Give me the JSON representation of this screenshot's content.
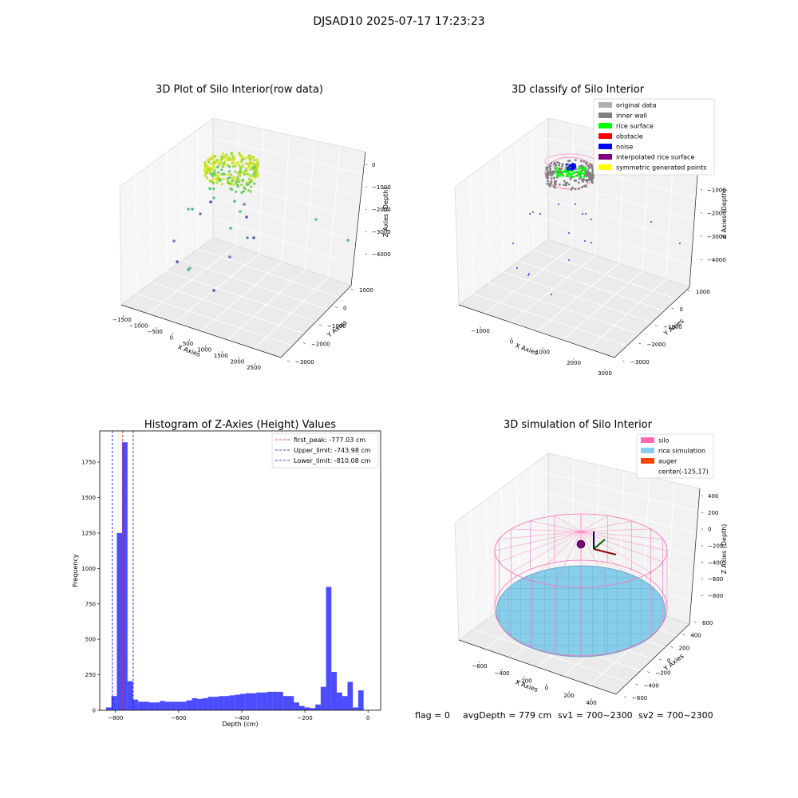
{
  "figure": {
    "suptitle": "DJSAD10 2025-07-17 17:23:23",
    "footer": {
      "flag": "flag = 0",
      "avg_depth": "avgDepth = 779 cm",
      "sv1": "sv1 = 700~2300",
      "sv2": "sv2 = 700~2300"
    }
  },
  "panels": {
    "raw": {
      "title": "3D Plot of Silo Interior(row data)",
      "xlabel": "X Axies",
      "ylabel": "Y Axies",
      "zlabel": "Z Axies (Depth)",
      "xticks": [
        "−1500",
        "−1000",
        "−500",
        "0",
        "500",
        "1000",
        "1500",
        "2000",
        "2500"
      ],
      "yticks": [
        "1000",
        "0",
        "−1000",
        "−2000",
        "−3000"
      ],
      "zticks": [
        "0",
        "−1000",
        "−2000",
        "−3000",
        "−4000"
      ]
    },
    "classify": {
      "title": "3D classify of Silo Interior",
      "xlabel": "X Axies",
      "ylabel": "Y Axies",
      "zlabel": "Z Axies (Depth)",
      "xticks": [
        "−1000",
        "0",
        "1000",
        "2000",
        "3000"
      ],
      "yticks": [
        "1000",
        "0",
        "−1000",
        "−2000",
        "−3000"
      ],
      "zticks": [
        "0",
        "−1000",
        "−2000",
        "−3000",
        "−4000"
      ],
      "legend": [
        {
          "label": "original data",
          "color": "#b0b0b0"
        },
        {
          "label": "inner wall",
          "color": "#808080"
        },
        {
          "label": "rice surface",
          "color": "#00ff00"
        },
        {
          "label": "obstacle",
          "color": "#ff0000"
        },
        {
          "label": "noise",
          "color": "#0000ff"
        },
        {
          "label": "interpolated rice surface",
          "color": "#800080"
        },
        {
          "label": "symmetric generated points",
          "color": "#ffff00"
        }
      ]
    },
    "simulation": {
      "title": "3D simulation of Silo Interior",
      "xlabel": "X Axies",
      "ylabel": "Y Axies",
      "zlabel": "Z Axies (Depth)",
      "xticks": [
        "−600",
        "−400",
        "−200",
        "0",
        "200",
        "400"
      ],
      "yticks": [
        "600",
        "400",
        "200",
        "0",
        "−200",
        "−400",
        "−600"
      ],
      "zticks": [
        "400",
        "200",
        "0",
        "−200",
        "−400",
        "−600",
        "−800"
      ],
      "legend": [
        {
          "label": "silo",
          "color": "#ff69b4"
        },
        {
          "label": "rice simulation",
          "color": "#87ceeb"
        },
        {
          "label": "auger",
          "color": "#ff4500"
        },
        {
          "label": "center(-125,17)",
          "color": ""
        }
      ]
    }
  },
  "chart_data": {
    "type": "bar",
    "title": "Histogram of Z-Axies (Height) Values",
    "xlabel": "Depth (cm)",
    "ylabel": "Frequency",
    "xlim": [
      -850,
      40
    ],
    "ylim": [
      0,
      1970
    ],
    "xticks": [
      -800,
      -600,
      -400,
      -200,
      0
    ],
    "yticks": [
      0,
      250,
      500,
      750,
      1000,
      1250,
      1500,
      1750
    ],
    "bar_color": "#0000ff",
    "bin_width": 17,
    "bins_start": [
      -830,
      -813,
      -796,
      -779,
      -762,
      -745,
      -728,
      -711,
      -694,
      -677,
      -660,
      -643,
      -626,
      -609,
      -592,
      -575,
      -558,
      -541,
      -524,
      -507,
      -490,
      -473,
      -456,
      -439,
      -422,
      -405,
      -388,
      -371,
      -354,
      -337,
      -320,
      -303,
      -286,
      -269,
      -252,
      -235,
      -218,
      -201,
      -184,
      -167,
      -150,
      -133,
      -116,
      -99,
      -82,
      -65,
      -48,
      -31,
      -14
    ],
    "values": [
      20,
      100,
      1250,
      1890,
      205,
      75,
      60,
      60,
      55,
      55,
      65,
      60,
      60,
      60,
      60,
      70,
      85,
      80,
      85,
      95,
      95,
      100,
      100,
      105,
      110,
      115,
      120,
      120,
      125,
      125,
      130,
      130,
      130,
      100,
      100,
      55,
      30,
      20,
      15,
      40,
      165,
      870,
      270,
      125,
      100,
      200,
      20,
      140,
      0
    ],
    "vlines": [
      {
        "label": "first_peak: -777.03 cm",
        "x": -777.03,
        "color": "#ff0000"
      },
      {
        "label": "Upper_limit: -743.98 cm",
        "x": -743.98,
        "color": "#0000ff"
      },
      {
        "label": "Lower_limit: -810.08 cm",
        "x": -810.08,
        "color": "#0000ff"
      }
    ],
    "legend_loc": "upper right"
  }
}
